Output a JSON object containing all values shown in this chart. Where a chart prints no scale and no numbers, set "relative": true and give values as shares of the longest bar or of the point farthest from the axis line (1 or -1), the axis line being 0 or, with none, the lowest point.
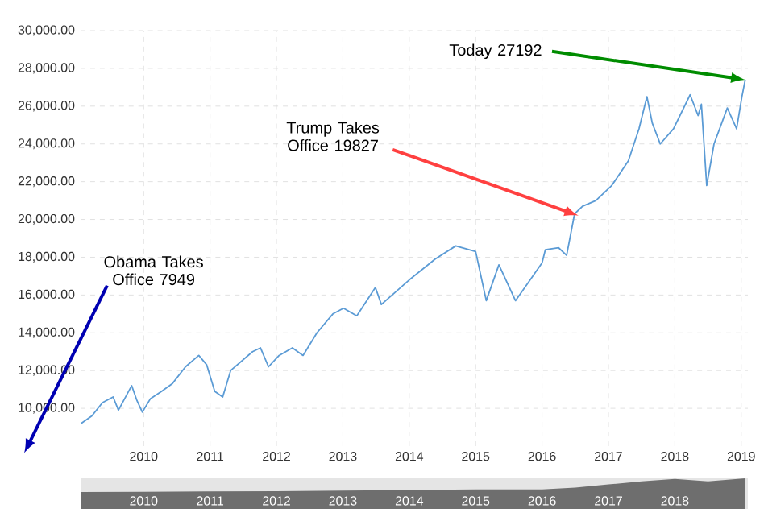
{
  "chart_data": [
    {
      "type": "line",
      "x": [
        2009.06,
        2009.22,
        2009.38,
        2009.54,
        2009.62,
        2009.82,
        2009.9,
        2009.98,
        2010.1,
        2010.27,
        2010.43,
        2010.63,
        2010.83,
        2010.95,
        2011.07,
        2011.19,
        2011.31,
        2011.64,
        2011.76,
        2011.88,
        2012.04,
        2012.24,
        2012.4,
        2012.61,
        2012.85,
        2013.01,
        2013.21,
        2013.49,
        2013.58,
        2014.0,
        2014.39,
        2014.7,
        2015.0,
        2015.16,
        2015.35,
        2015.6,
        2016.0,
        2016.05,
        2016.25,
        2016.37,
        2016.49,
        2016.61,
        2016.81,
        2017.05,
        2017.3,
        2017.46,
        2017.58,
        2017.66,
        2017.78,
        2017.98,
        2018.23,
        2018.35,
        2018.4,
        2018.48,
        2018.59,
        2018.79,
        2018.93,
        2019.01,
        2019.06
      ],
      "series": [
        {
          "color": "#5b9bd5",
          "values": [
            9200,
            9600,
            10300,
            10600,
            9900,
            11200,
            10400,
            9800,
            10500,
            10900,
            11300,
            12200,
            12800,
            12300,
            10900,
            10600,
            12000,
            13000,
            13200,
            12200,
            12800,
            13200,
            12800,
            14000,
            15000,
            15300,
            14900,
            16400,
            15500,
            16800,
            17900,
            18600,
            18300,
            15700,
            17600,
            15700,
            17700,
            18400,
            18500,
            18100,
            20300,
            20700,
            21000,
            21800,
            23100,
            24800,
            26500,
            25100,
            24000,
            24800,
            26600,
            25500,
            26100,
            21800,
            24000,
            25900,
            24800,
            26500,
            27400
          ]
        }
      ],
      "xlim": [
        2009.05,
        2019.1
      ],
      "xticks": [
        2010,
        2011,
        2012,
        2013,
        2014,
        2015,
        2016,
        2017,
        2018,
        2019
      ],
      "ylim": [
        8000,
        30000
      ],
      "yticks": [
        {
          "value": 10000,
          "label": "10,000.00"
        },
        {
          "value": 12000,
          "label": "12,000.00"
        },
        {
          "value": 14000,
          "label": "14,000.00"
        },
        {
          "value": 16000,
          "label": "16,000.00"
        },
        {
          "value": 18000,
          "label": "18,000.00"
        },
        {
          "value": 20000,
          "label": "20,000.00"
        },
        {
          "value": 22000,
          "label": "22,000.00"
        },
        {
          "value": 24000,
          "label": "24,000.00"
        },
        {
          "value": 26000,
          "label": "26,000.00"
        },
        {
          "value": 28000,
          "label": "28,000.00"
        },
        {
          "value": 30000,
          "label": "30,000.00"
        }
      ],
      "grid": true,
      "annotations": [
        "Obama Takes Office 7949",
        {
          "text": "Trump Takes Office 19827",
          "x": 2016.55,
          "y": 20200
        },
        {
          "text": "Today 27192",
          "x": 2019.06,
          "y": 27400
        }
      ]
    },
    {
      "type": "area",
      "relative": true,
      "x": [
        2009.06,
        2010,
        2011,
        2012,
        2013,
        2014,
        2015,
        2016,
        2016.5,
        2017,
        2017.5,
        2018,
        2018.5,
        2019.06
      ],
      "series": [
        {
          "color": "#6e6e6e",
          "values": [
            0.55,
            0.56,
            0.57,
            0.58,
            0.6,
            0.62,
            0.64,
            0.64,
            0.7,
            0.8,
            0.9,
            0.98,
            0.9,
            1
          ]
        }
      ],
      "xlim": [
        2009.05,
        2019.1
      ],
      "xticks": [
        2010,
        2011,
        2012,
        2013,
        2014,
        2015,
        2016,
        2017,
        2018
      ]
    }
  ]
}
